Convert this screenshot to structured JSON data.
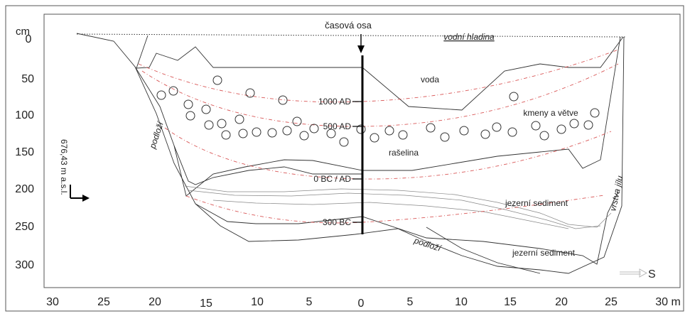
{
  "diagram": {
    "y_unit": "cm",
    "x_unit_label": "30 m",
    "y_ticks": [
      "0",
      "50",
      "100",
      "150",
      "200",
      "250",
      "300"
    ],
    "x_ticks": [
      "30",
      "25",
      "20",
      "15",
      "10",
      "5",
      "0",
      "5",
      "10",
      "15",
      "20",
      "25"
    ],
    "elevation_label": "676,43 m a.s.l.",
    "direction_label": "S",
    "time_axis_title": "časová osa",
    "time_marks": [
      "1000 AD",
      "500 AD",
      "0 BC / AD",
      "300 BC"
    ],
    "layers": {
      "water_surface": "vodní hladina",
      "water": "voda",
      "trunks": "kmeny a větve",
      "peat": "rašelina",
      "lake_sediment_upper": "jezerní sediment",
      "lake_sediment_lower": "jezerní sediment",
      "clay_layer": "vrstva jílu",
      "bedrock_left": "podloží",
      "bedrock_bottom": "podloží"
    },
    "colors": {
      "axis": "#000000",
      "boundary": "#333333",
      "isochron": "#d23a3a"
    },
    "icons": [
      "arrow-down-icon",
      "elevation-arrow-icon",
      "south-arrow-icon"
    ]
  }
}
